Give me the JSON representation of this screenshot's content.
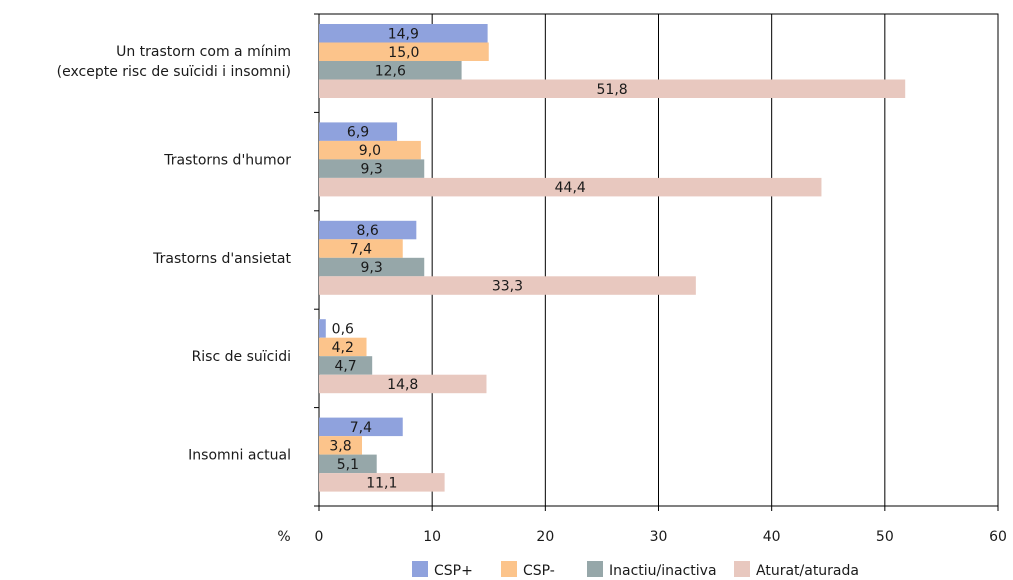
{
  "chart_data": {
    "type": "bar",
    "orientation": "horizontal",
    "categories": [
      [
        "Un trastorn com a mínim",
        "(excepte risc de suïcidi i insomni)"
      ],
      [
        "Trastorns d'humor"
      ],
      [
        "Trastorns d'ansietat"
      ],
      [
        "Risc de suïcidi"
      ],
      [
        "Insomni actual"
      ]
    ],
    "series": [
      {
        "name": "CSP+",
        "color": "#8fa2dd",
        "values": [
          14.9,
          6.9,
          8.6,
          0.6,
          7.4
        ],
        "labels": [
          "14,9",
          "6,9",
          "8,6",
          "0,6",
          "7,4"
        ]
      },
      {
        "name": "CSP-",
        "color": "#fcc48b",
        "values": [
          15.0,
          9.0,
          7.4,
          4.2,
          3.8
        ],
        "labels": [
          "15,0",
          "9,0",
          "7,4",
          "4,2",
          "3,8"
        ]
      },
      {
        "name": "Inactiu/inactiva",
        "color": "#96a7a9",
        "values": [
          12.6,
          9.3,
          9.3,
          4.7,
          5.1
        ],
        "labels": [
          "12,6",
          "9,3",
          "9,3",
          "4,7",
          "5,1"
        ]
      },
      {
        "name": "Aturat/aturada",
        "color": "#e8c8bf",
        "values": [
          51.8,
          44.4,
          33.3,
          14.8,
          11.1
        ],
        "labels": [
          "51,8",
          "44,4",
          "33,3",
          "14,8",
          "11,1"
        ]
      }
    ],
    "xlim": [
      0,
      60
    ],
    "xticks": [
      0,
      10,
      20,
      30,
      40,
      50,
      60
    ],
    "xlabel": "%",
    "grid": "vertical",
    "legend": "bottom"
  }
}
